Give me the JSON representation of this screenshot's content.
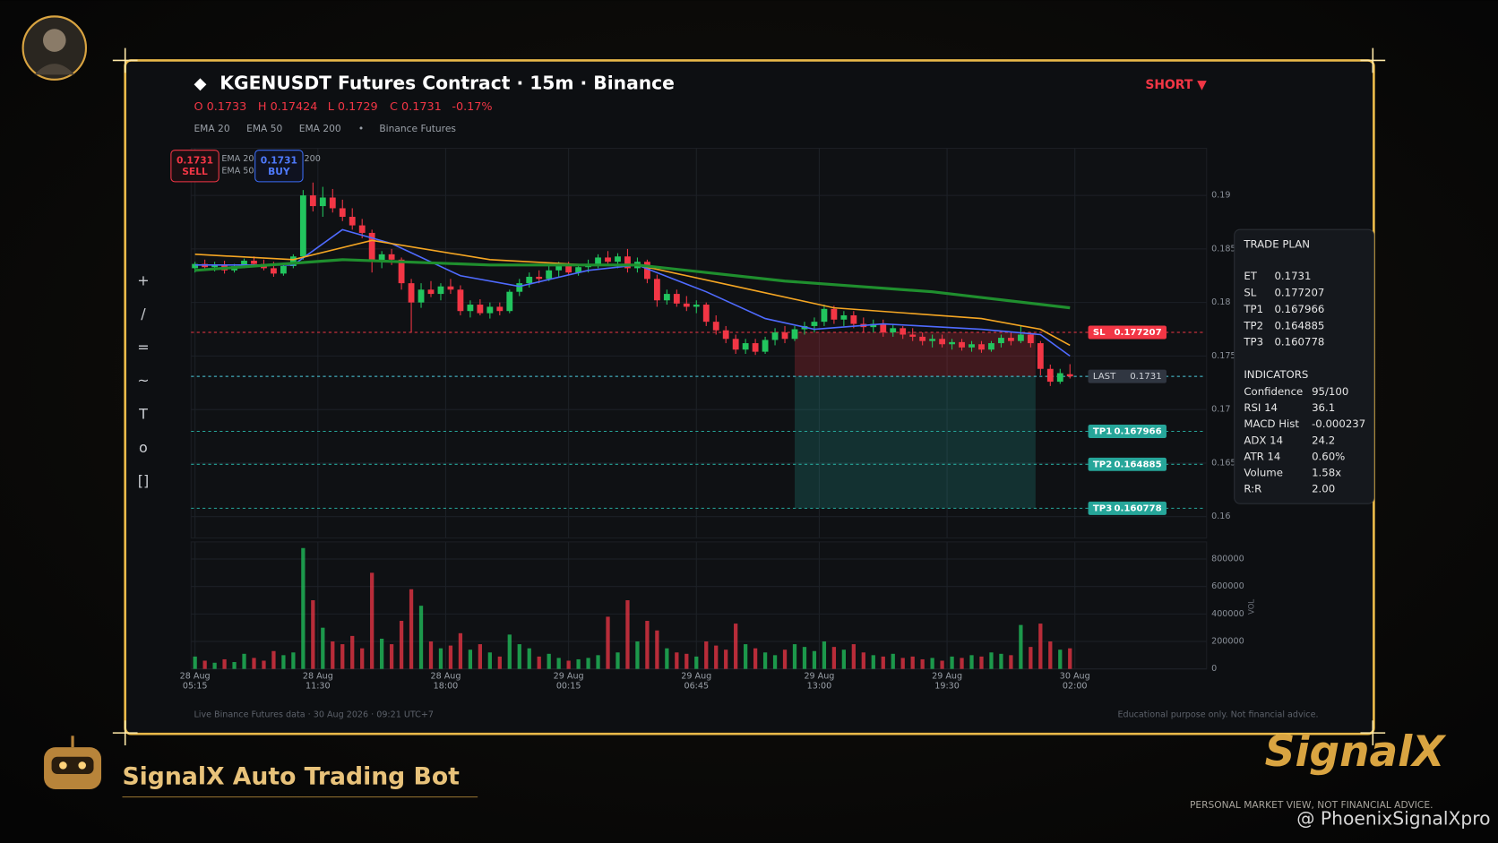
{
  "header": {
    "title": "KGENUSDT Futures Contract · 15m · Binance",
    "ohlc": [
      "O 0.1733",
      "H 0.17424",
      "L 0.1729",
      "C 0.1731",
      "-0.17%"
    ],
    "indicators": [
      "EMA 20",
      "EMA 50",
      "EMA 200",
      "•",
      "Binance Futures"
    ],
    "side": "SHORT ▼"
  },
  "quotes": {
    "sell": {
      "price": "0.1731",
      "label": "SELL"
    },
    "buy": {
      "price": "0.1731",
      "label": "BUY"
    }
  },
  "toolbar": [
    "+",
    "/",
    "=",
    "~",
    "T",
    "o",
    "[]"
  ],
  "chart_data": [
    {
      "type": "candlestick",
      "up_color": "#22c55e",
      "down_color": "#f23645",
      "grid": true,
      "xlim": [
        -0.4,
        102.9
      ],
      "xticks": [
        {
          "value": 0,
          "label": [
            "28 Aug",
            "05:15"
          ]
        },
        {
          "value": 12.5,
          "label": [
            "28 Aug",
            "11:30"
          ]
        },
        {
          "value": 25.5,
          "label": [
            "28 Aug",
            "18:00"
          ]
        },
        {
          "value": 38,
          "label": [
            "29 Aug",
            "00:15"
          ]
        },
        {
          "value": 51,
          "label": [
            "29 Aug",
            "06:45"
          ]
        },
        {
          "value": 63.5,
          "label": [
            "29 Aug",
            "13:00"
          ]
        },
        {
          "value": 76.5,
          "label": [
            "29 Aug",
            "19:30"
          ]
        },
        {
          "value": 89.5,
          "label": [
            "30 Aug",
            "02:00"
          ]
        }
      ],
      "ylim": [
        0.158,
        0.1944
      ],
      "yticks": [
        0.16,
        0.165,
        0.17,
        0.175,
        0.18,
        0.185,
        0.19
      ],
      "candles": [
        [
          0.1832,
          0.1838,
          0.1828,
          0.1836
        ],
        [
          0.1836,
          0.184,
          0.183,
          0.1833
        ],
        [
          0.1833,
          0.1838,
          0.1829,
          0.1835
        ],
        [
          0.1835,
          0.1839,
          0.1827,
          0.183
        ],
        [
          0.183,
          0.1836,
          0.1828,
          0.1834
        ],
        [
          0.1834,
          0.1841,
          0.1832,
          0.1839
        ],
        [
          0.1839,
          0.1843,
          0.1833,
          0.1836
        ],
        [
          0.1836,
          0.184,
          0.183,
          0.1832
        ],
        [
          0.1832,
          0.1838,
          0.1824,
          0.1827
        ],
        [
          0.1827,
          0.1836,
          0.1825,
          0.1834
        ],
        [
          0.1834,
          0.1845,
          0.1832,
          0.1843
        ],
        [
          0.1843,
          0.1905,
          0.184,
          0.19
        ],
        [
          0.19,
          0.1912,
          0.1885,
          0.189
        ],
        [
          0.189,
          0.1908,
          0.188,
          0.1898
        ],
        [
          0.1898,
          0.1906,
          0.1884,
          0.1888
        ],
        [
          0.1888,
          0.1896,
          0.1876,
          0.188
        ],
        [
          0.188,
          0.1888,
          0.1868,
          0.1872
        ],
        [
          0.1872,
          0.1878,
          0.186,
          0.1865
        ],
        [
          0.1865,
          0.1868,
          0.1828,
          0.1838
        ],
        [
          0.1838,
          0.1848,
          0.1832,
          0.1845
        ],
        [
          0.1845,
          0.185,
          0.1835,
          0.184
        ],
        [
          0.184,
          0.1842,
          0.1812,
          0.1818
        ],
        [
          0.1818,
          0.1822,
          0.1772,
          0.18
        ],
        [
          0.18,
          0.1818,
          0.1795,
          0.1812
        ],
        [
          0.1812,
          0.182,
          0.1805,
          0.1808
        ],
        [
          0.1808,
          0.1818,
          0.1802,
          0.1815
        ],
        [
          0.1815,
          0.1822,
          0.1808,
          0.1812
        ],
        [
          0.1812,
          0.1816,
          0.1788,
          0.1792
        ],
        [
          0.1792,
          0.1802,
          0.1786,
          0.1798
        ],
        [
          0.1798,
          0.1803,
          0.1788,
          0.179
        ],
        [
          0.179,
          0.18,
          0.1785,
          0.1796
        ],
        [
          0.1796,
          0.18,
          0.1788,
          0.1792
        ],
        [
          0.1792,
          0.1812,
          0.179,
          0.181
        ],
        [
          0.181,
          0.1822,
          0.1806,
          0.1818
        ],
        [
          0.1818,
          0.1828,
          0.1814,
          0.1824
        ],
        [
          0.1824,
          0.183,
          0.1818,
          0.1822
        ],
        [
          0.1822,
          0.1834,
          0.182,
          0.183
        ],
        [
          0.183,
          0.1838,
          0.1824,
          0.1834
        ],
        [
          0.1834,
          0.1838,
          0.1826,
          0.1828
        ],
        [
          0.1828,
          0.1836,
          0.1825,
          0.1833
        ],
        [
          0.1833,
          0.184,
          0.1828,
          0.1836
        ],
        [
          0.1836,
          0.1845,
          0.1832,
          0.1842
        ],
        [
          0.1842,
          0.1848,
          0.1834,
          0.1838
        ],
        [
          0.1838,
          0.1846,
          0.1832,
          0.1843
        ],
        [
          0.1843,
          0.185,
          0.1828,
          0.1832
        ],
        [
          0.1832,
          0.1842,
          0.1828,
          0.1838
        ],
        [
          0.1838,
          0.184,
          0.1818,
          0.1822
        ],
        [
          0.1822,
          0.1826,
          0.1796,
          0.1802
        ],
        [
          0.1802,
          0.1812,
          0.1798,
          0.1808
        ],
        [
          0.1808,
          0.1812,
          0.1796,
          0.1799
        ],
        [
          0.1799,
          0.1806,
          0.1792,
          0.1796
        ],
        [
          0.1796,
          0.1802,
          0.179,
          0.1798
        ],
        [
          0.1798,
          0.18,
          0.1778,
          0.1782
        ],
        [
          0.1782,
          0.1788,
          0.177,
          0.1774
        ],
        [
          0.1774,
          0.1778,
          0.1762,
          0.1766
        ],
        [
          0.1766,
          0.177,
          0.1752,
          0.1756
        ],
        [
          0.1756,
          0.1766,
          0.1752,
          0.1762
        ],
        [
          0.1762,
          0.1766,
          0.1751,
          0.1754
        ],
        [
          0.1754,
          0.1768,
          0.1752,
          0.1765
        ],
        [
          0.1765,
          0.1776,
          0.176,
          0.1772
        ],
        [
          0.1772,
          0.1778,
          0.1762,
          0.1766
        ],
        [
          0.1766,
          0.1778,
          0.1764,
          0.1775
        ],
        [
          0.1775,
          0.1782,
          0.177,
          0.1778
        ],
        [
          0.1778,
          0.1786,
          0.1772,
          0.1782
        ],
        [
          0.1782,
          0.1798,
          0.1778,
          0.1794
        ],
        [
          0.1794,
          0.1797,
          0.178,
          0.1784
        ],
        [
          0.1784,
          0.1792,
          0.1778,
          0.1788
        ],
        [
          0.1788,
          0.1792,
          0.1776,
          0.178
        ],
        [
          0.178,
          0.1786,
          0.1772,
          0.1777
        ],
        [
          0.1777,
          0.1784,
          0.1772,
          0.178
        ],
        [
          0.178,
          0.1784,
          0.1768,
          0.1772
        ],
        [
          0.1772,
          0.178,
          0.1768,
          0.1776
        ],
        [
          0.1776,
          0.1778,
          0.1766,
          0.177
        ],
        [
          0.177,
          0.1776,
          0.1764,
          0.1768
        ],
        [
          0.1768,
          0.1772,
          0.176,
          0.1764
        ],
        [
          0.1764,
          0.177,
          0.1758,
          0.1766
        ],
        [
          0.1766,
          0.177,
          0.1758,
          0.1761
        ],
        [
          0.1761,
          0.1766,
          0.1756,
          0.1763
        ],
        [
          0.1763,
          0.1766,
          0.1755,
          0.1758
        ],
        [
          0.1758,
          0.1764,
          0.1754,
          0.1761
        ],
        [
          0.1761,
          0.1764,
          0.1753,
          0.1756
        ],
        [
          0.1756,
          0.1764,
          0.1754,
          0.1762
        ],
        [
          0.1762,
          0.177,
          0.1758,
          0.1767
        ],
        [
          0.1767,
          0.1772,
          0.176,
          0.1764
        ],
        [
          0.1764,
          0.1778,
          0.1762,
          0.177
        ],
        [
          0.177,
          0.1772,
          0.1758,
          0.1762
        ],
        [
          0.1762,
          0.1764,
          0.1732,
          0.1738
        ],
        [
          0.1738,
          0.1742,
          0.1722,
          0.1726
        ],
        [
          0.1726,
          0.1738,
          0.1724,
          0.1734
        ],
        [
          0.1733,
          0.17424,
          0.1729,
          0.1731
        ]
      ],
      "series": [
        {
          "name": "EMA 20",
          "color": "#4f6bff",
          "width": 1.5,
          "x": [
            0,
            10,
            15,
            20,
            27,
            33,
            40,
            45,
            52,
            58,
            63,
            70,
            80,
            86,
            89
          ],
          "values": [
            0.1835,
            0.1835,
            0.1868,
            0.1855,
            0.1825,
            0.1815,
            0.183,
            0.1835,
            0.181,
            0.1785,
            0.1775,
            0.178,
            0.1775,
            0.177,
            0.175
          ]
        },
        {
          "name": "EMA 50",
          "color": "#f5a623",
          "width": 1.5,
          "x": [
            0,
            10,
            18,
            30,
            40,
            45,
            55,
            65,
            80,
            86,
            89
          ],
          "values": [
            0.1845,
            0.184,
            0.1858,
            0.184,
            0.1835,
            0.1835,
            0.1815,
            0.1795,
            0.1785,
            0.1775,
            0.176
          ]
        },
        {
          "name": "EMA 200",
          "color": "#1f8f2e",
          "width": 3,
          "x": [
            0,
            15,
            30,
            45,
            60,
            75,
            89
          ],
          "values": [
            0.183,
            0.184,
            0.1835,
            0.1835,
            0.182,
            0.181,
            0.1795
          ]
        }
      ],
      "levels": [
        {
          "name": "SL",
          "value": 0.177207,
          "color": "#f23645"
        },
        {
          "name": "LAST",
          "value": 0.1731,
          "color": "#4dd0e1"
        },
        {
          "name": "TP1",
          "value": 0.167966,
          "color": "#26a69a"
        },
        {
          "name": "TP2",
          "value": 0.164885,
          "color": "#26a69a"
        },
        {
          "name": "TP3",
          "value": 0.160778,
          "color": "#26a69a"
        }
      ],
      "position_x": [
        61,
        85.5
      ]
    },
    {
      "type": "bar",
      "y_label": "VOL",
      "xlim": [
        -0.4,
        102.9
      ],
      "ylim": [
        0,
        925000
      ],
      "yticks": [
        0,
        200000,
        400000,
        600000,
        800000
      ],
      "values": [
        90000,
        60000,
        45000,
        70000,
        50000,
        110000,
        80000,
        60000,
        130000,
        100000,
        120000,
        880000,
        500000,
        300000,
        200000,
        180000,
        240000,
        150000,
        700000,
        220000,
        180000,
        350000,
        580000,
        460000,
        200000,
        150000,
        170000,
        260000,
        140000,
        180000,
        120000,
        90000,
        250000,
        180000,
        150000,
        90000,
        110000,
        80000,
        60000,
        70000,
        80000,
        100000,
        380000,
        120000,
        500000,
        200000,
        350000,
        280000,
        150000,
        120000,
        110000,
        90000,
        200000,
        170000,
        140000,
        330000,
        180000,
        150000,
        120000,
        100000,
        140000,
        180000,
        160000,
        130000,
        200000,
        160000,
        140000,
        180000,
        120000,
        100000,
        90000,
        110000,
        80000,
        90000,
        70000,
        80000,
        60000,
        90000,
        80000,
        100000,
        90000,
        120000,
        110000,
        100000,
        320000,
        160000,
        330000,
        200000,
        140000,
        150000
      ]
    }
  ],
  "trade_plan": {
    "title": "TRADE PLAN",
    "rows": [
      [
        "ET",
        "0.1731"
      ],
      [
        "SL",
        "0.177207"
      ],
      [
        "TP1",
        "0.167966"
      ],
      [
        "TP2",
        "0.164885"
      ],
      [
        "TP3",
        "0.160778"
      ]
    ],
    "indicators_title": "INDICATORS",
    "indicators": [
      [
        "Confidence",
        "95/100"
      ],
      [
        "RSI 14",
        "36.1"
      ],
      [
        "MACD Hist",
        "-0.000237"
      ],
      [
        "ADX 14",
        "24.2"
      ],
      [
        "ATR 14",
        "0.60%"
      ],
      [
        "Volume",
        "1.58x"
      ],
      [
        "R:R",
        "2.00"
      ]
    ]
  },
  "footer": {
    "left": "Live Binance Futures data  ·  30 Aug 2026 · 09:21 UTC+7",
    "right": "Educational purpose only. Not financial advice."
  },
  "brand": {
    "name": "SignalX Auto Trading Bot",
    "logo": "SignalX",
    "tagline": "PERSONAL MARKET VIEW, NOT FINANCIAL ADVICE.",
    "handle": "@ PhoenixSignalXpro"
  }
}
